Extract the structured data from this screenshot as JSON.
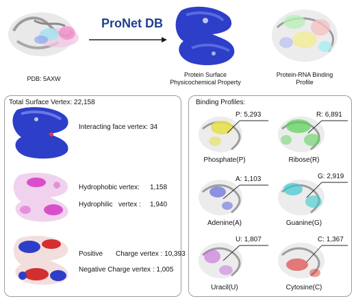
{
  "top": {
    "pdb_label": "PDB: 5AXW",
    "title": "ProNet DB",
    "surface_label_line1": "Protein Surface",
    "surface_label_line2": "Physicochemical Property",
    "rna_label_line1": "Protein-RNA Binding",
    "rna_label_line2": "Profile"
  },
  "left_panel": {
    "total_vertex": "Total Surface Vertex: 22,158",
    "interacting_label": "Interacting face vertex:",
    "interacting_value": "34",
    "hydrophobic_label": "Hydrophobic vertex:",
    "hydrophobic_value": "1,158",
    "hydrophilic_label": "Hydrophilic",
    "hydrophilic_label2": "vertex :",
    "hydrophilic_value": "1,940",
    "positive_label": "Positive",
    "positive_label2": "Charge vertex : 10,393",
    "negative_label": "Negative Charge vertex : 1,005"
  },
  "right_panel": {
    "title": "Binding Profiles:",
    "profiles": [
      {
        "name": "Phosphate(P)",
        "count": "P: 5,293",
        "color": "#e6e04a"
      },
      {
        "name": "Ribose(R)",
        "count": "R: 6,891",
        "color": "#5fd35f"
      },
      {
        "name": "Adenine(A)",
        "count": "A: 1,103",
        "color": "#4b55d6"
      },
      {
        "name": "Guanine(G)",
        "count": "G: 2,919",
        "color": "#3cc9d0"
      },
      {
        "name": "Uracil(U)",
        "count": "U: 1,807",
        "color": "#c46ad8"
      },
      {
        "name": "Cytosine(C)",
        "count": "C: 1,367",
        "color": "#e03a3a"
      }
    ]
  },
  "colors": {
    "title_blue": "#1f3f8f",
    "surface_blue": "#2d3ec8",
    "hydrophobic_pink": "#d94fc9",
    "charge_red": "#d42f2f"
  }
}
